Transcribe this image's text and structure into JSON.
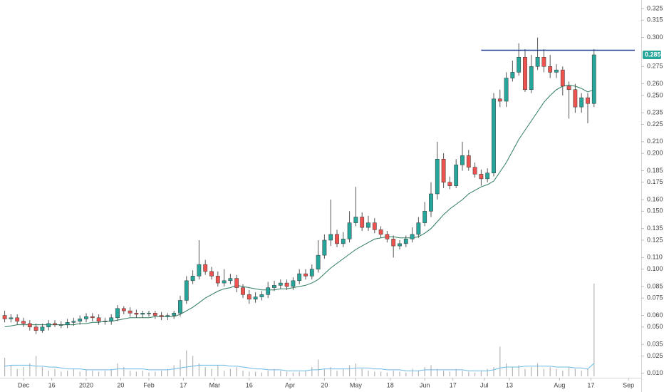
{
  "chart_data": {
    "type": "candlestick",
    "x": [
      -6,
      -4,
      -2,
      0,
      2,
      4,
      6,
      8,
      10,
      12,
      14,
      16,
      18,
      20,
      22,
      24,
      26,
      28,
      30,
      32,
      34,
      36,
      38,
      40,
      42,
      44,
      46,
      48,
      50,
      52,
      54,
      56,
      58,
      60,
      62,
      64,
      66,
      68,
      70,
      72,
      74,
      76,
      78,
      80,
      82,
      84,
      86,
      88,
      90,
      92,
      94,
      96,
      98,
      100,
      102,
      104,
      106,
      108,
      110,
      112,
      114,
      116,
      118,
      120,
      122,
      124,
      126,
      128,
      130,
      132,
      134,
      136,
      138,
      140,
      142,
      144,
      146,
      148,
      150,
      152,
      154,
      156,
      158,
      160,
      162,
      164,
      166,
      168,
      170,
      172,
      174,
      176,
      178,
      180,
      182
    ],
    "open": [
      0.06,
      0.057,
      0.058,
      0.055,
      0.053,
      0.05,
      0.047,
      0.05,
      0.053,
      0.052,
      0.052,
      0.054,
      0.055,
      0.057,
      0.059,
      0.058,
      0.055,
      0.055,
      0.058,
      0.066,
      0.064,
      0.062,
      0.061,
      0.062,
      0.062,
      0.06,
      0.059,
      0.06,
      0.062,
      0.073,
      0.09,
      0.094,
      0.104,
      0.098,
      0.094,
      0.088,
      0.09,
      0.092,
      0.084,
      0.078,
      0.074,
      0.076,
      0.078,
      0.084,
      0.086,
      0.088,
      0.085,
      0.09,
      0.096,
      0.094,
      0.1,
      0.112,
      0.125,
      0.13,
      0.122,
      0.126,
      0.14,
      0.145,
      0.136,
      0.14,
      0.134,
      0.13,
      0.126,
      0.12,
      0.122,
      0.126,
      0.13,
      0.14,
      0.15,
      0.165,
      0.195,
      0.175,
      0.172,
      0.19,
      0.198,
      0.188,
      0.182,
      0.178,
      0.183,
      0.247,
      0.245,
      0.265,
      0.27,
      0.283,
      0.255,
      0.275,
      0.283,
      0.275,
      0.27,
      0.272,
      0.258,
      0.255,
      0.24,
      0.248,
      0.243
    ],
    "high": [
      0.064,
      0.061,
      0.061,
      0.058,
      0.056,
      0.053,
      0.053,
      0.056,
      0.056,
      0.055,
      0.057,
      0.058,
      0.06,
      0.062,
      0.062,
      0.061,
      0.058,
      0.061,
      0.069,
      0.068,
      0.067,
      0.065,
      0.064,
      0.064,
      0.064,
      0.063,
      0.062,
      0.064,
      0.077,
      0.094,
      0.099,
      0.125,
      0.108,
      0.102,
      0.098,
      0.1,
      0.096,
      0.095,
      0.087,
      0.082,
      0.08,
      0.081,
      0.089,
      0.09,
      0.091,
      0.091,
      0.093,
      0.1,
      0.1,
      0.104,
      0.125,
      0.13,
      0.16,
      0.134,
      0.132,
      0.15,
      0.171,
      0.149,
      0.146,
      0.144,
      0.137,
      0.133,
      0.129,
      0.125,
      0.129,
      0.136,
      0.145,
      0.158,
      0.175,
      0.21,
      0.2,
      0.18,
      0.195,
      0.21,
      0.203,
      0.192,
      0.186,
      0.187,
      0.252,
      0.255,
      0.27,
      0.28,
      0.295,
      0.29,
      0.285,
      0.3,
      0.29,
      0.285,
      0.277,
      0.275,
      0.262,
      0.26,
      0.252,
      0.252,
      0.29
    ],
    "low": [
      0.054,
      0.054,
      0.052,
      0.05,
      0.047,
      0.044,
      0.045,
      0.047,
      0.05,
      0.049,
      0.049,
      0.051,
      0.052,
      0.054,
      0.055,
      0.052,
      0.052,
      0.052,
      0.055,
      0.061,
      0.059,
      0.058,
      0.058,
      0.059,
      0.057,
      0.056,
      0.056,
      0.057,
      0.059,
      0.07,
      0.087,
      0.091,
      0.095,
      0.091,
      0.085,
      0.085,
      0.087,
      0.08,
      0.075,
      0.07,
      0.071,
      0.073,
      0.075,
      0.081,
      0.083,
      0.082,
      0.082,
      0.087,
      0.091,
      0.091,
      0.097,
      0.109,
      0.12,
      0.119,
      0.119,
      0.123,
      0.137,
      0.133,
      0.133,
      0.131,
      0.127,
      0.123,
      0.11,
      0.117,
      0.119,
      0.123,
      0.127,
      0.137,
      0.145,
      0.16,
      0.17,
      0.169,
      0.17,
      0.185,
      0.185,
      0.179,
      0.172,
      0.175,
      0.18,
      0.24,
      0.24,
      0.262,
      0.267,
      0.253,
      0.252,
      0.272,
      0.27,
      0.265,
      0.265,
      0.25,
      0.23,
      0.235,
      0.235,
      0.226,
      0.24
    ],
    "close": [
      0.057,
      0.058,
      0.055,
      0.053,
      0.05,
      0.047,
      0.05,
      0.053,
      0.052,
      0.052,
      0.054,
      0.055,
      0.057,
      0.059,
      0.058,
      0.055,
      0.055,
      0.058,
      0.066,
      0.064,
      0.062,
      0.061,
      0.062,
      0.062,
      0.06,
      0.059,
      0.06,
      0.062,
      0.073,
      0.09,
      0.094,
      0.104,
      0.098,
      0.094,
      0.088,
      0.09,
      0.092,
      0.084,
      0.078,
      0.074,
      0.076,
      0.078,
      0.084,
      0.086,
      0.088,
      0.085,
      0.09,
      0.096,
      0.094,
      0.1,
      0.112,
      0.125,
      0.13,
      0.122,
      0.126,
      0.14,
      0.145,
      0.136,
      0.14,
      0.134,
      0.13,
      0.126,
      0.12,
      0.122,
      0.126,
      0.13,
      0.14,
      0.15,
      0.165,
      0.195,
      0.175,
      0.172,
      0.19,
      0.198,
      0.188,
      0.182,
      0.178,
      0.183,
      0.247,
      0.245,
      0.265,
      0.27,
      0.283,
      0.255,
      0.275,
      0.283,
      0.275,
      0.27,
      0.272,
      0.258,
      0.255,
      0.24,
      0.248,
      0.243,
      0.285
    ],
    "ma": [
      0.05,
      0.051,
      0.052,
      0.052,
      0.052,
      0.052,
      0.052,
      0.052,
      0.052,
      0.052,
      0.052,
      0.052,
      0.053,
      0.053,
      0.054,
      0.054,
      0.055,
      0.055,
      0.056,
      0.057,
      0.058,
      0.058,
      0.058,
      0.058,
      0.059,
      0.059,
      0.059,
      0.059,
      0.061,
      0.064,
      0.067,
      0.071,
      0.075,
      0.078,
      0.081,
      0.083,
      0.084,
      0.086,
      0.085,
      0.084,
      0.083,
      0.082,
      0.082,
      0.082,
      0.083,
      0.083,
      0.084,
      0.085,
      0.086,
      0.088,
      0.091,
      0.096,
      0.101,
      0.105,
      0.109,
      0.113,
      0.117,
      0.12,
      0.123,
      0.126,
      0.127,
      0.128,
      0.128,
      0.127,
      0.127,
      0.127,
      0.128,
      0.131,
      0.135,
      0.141,
      0.147,
      0.152,
      0.156,
      0.16,
      0.165,
      0.168,
      0.171,
      0.173,
      0.176,
      0.184,
      0.192,
      0.202,
      0.212,
      0.22,
      0.228,
      0.236,
      0.244,
      0.25,
      0.255,
      0.258,
      0.259,
      0.258,
      0.256,
      0.253,
      0.255
    ],
    "volume": [
      20,
      12,
      8,
      10,
      14,
      22,
      10,
      6,
      8,
      5,
      6,
      8,
      5,
      7,
      6,
      5,
      6,
      8,
      14,
      10,
      6,
      5,
      6,
      4,
      5,
      6,
      8,
      12,
      18,
      28,
      22,
      14,
      10,
      8,
      12,
      6,
      8,
      10,
      6,
      5,
      5,
      4,
      6,
      8,
      6,
      5,
      4,
      5,
      6,
      10,
      18,
      8,
      10,
      6,
      8,
      12,
      14,
      8,
      6,
      5,
      5,
      4,
      6,
      5,
      4,
      8,
      6,
      10,
      12,
      8,
      6,
      5,
      8,
      6,
      5,
      4,
      6,
      8,
      10,
      32,
      14,
      10,
      12,
      8,
      10,
      14,
      8,
      10,
      8,
      6,
      10,
      8,
      6,
      8,
      100
    ],
    "volume_ma": [
      11,
      12,
      12,
      12,
      12,
      11,
      11,
      10,
      10,
      9,
      8,
      8,
      8,
      7,
      7,
      7,
      7,
      7,
      8,
      8,
      8,
      8,
      8,
      7,
      7,
      7,
      7,
      8,
      9,
      10,
      11,
      12,
      12,
      12,
      12,
      12,
      11,
      11,
      10,
      9,
      8,
      8,
      7,
      7,
      7,
      6,
      6,
      6,
      6,
      7,
      7,
      8,
      8,
      8,
      8,
      8,
      9,
      9,
      9,
      8,
      8,
      7,
      7,
      7,
      6,
      6,
      6,
      7,
      7,
      7,
      7,
      7,
      7,
      7,
      6,
      6,
      6,
      6,
      7,
      9,
      10,
      10,
      10,
      11,
      11,
      11,
      11,
      11,
      10,
      10,
      10,
      9,
      9,
      8,
      14
    ],
    "up_color": "#26a69a",
    "down_color": "#ef5350",
    "ma_color": "#2e7d5b",
    "volume_color": "#b5b5b5",
    "volume_ma_color": "#6bbbe6",
    "xlim": [
      -7.5,
      197.05
    ],
    "ylim": [
      0.0062,
      0.3324
    ],
    "vlim": [
      0,
      100
    ],
    "xticks": [
      {
        "value": 0,
        "label": "Dec"
      },
      {
        "value": 9,
        "label": "16"
      },
      {
        "value": 20,
        "label": "2020"
      },
      {
        "value": 31,
        "label": "20"
      },
      {
        "value": 40,
        "label": "Feb"
      },
      {
        "value": 51,
        "label": "17"
      },
      {
        "value": 61,
        "label": "Mar"
      },
      {
        "value": 72,
        "label": "16"
      },
      {
        "value": 85,
        "label": "Apr"
      },
      {
        "value": 96,
        "label": "20"
      },
      {
        "value": 106,
        "label": "May"
      },
      {
        "value": 117,
        "label": "18"
      },
      {
        "value": 128,
        "label": "Jun"
      },
      {
        "value": 137,
        "label": "17"
      },
      {
        "value": 147,
        "label": "Jul"
      },
      {
        "value": 155,
        "label": "13"
      },
      {
        "value": 171,
        "label": "Aug"
      },
      {
        "value": 181,
        "label": "17"
      },
      {
        "value": 193,
        "label": "Sep"
      }
    ],
    "yticks": [
      {
        "value": 0.01,
        "label": "0.010"
      },
      {
        "value": 0.025,
        "label": "0.025"
      },
      {
        "value": 0.035,
        "label": "0.035"
      },
      {
        "value": 0.05,
        "label": "0.050"
      },
      {
        "value": 0.06,
        "label": "0.060"
      },
      {
        "value": 0.075,
        "label": "0.075"
      },
      {
        "value": 0.085,
        "label": "0.085"
      },
      {
        "value": 0.1,
        "label": "0.100"
      },
      {
        "value": 0.11,
        "label": "0.110"
      },
      {
        "value": 0.125,
        "label": "0.125"
      },
      {
        "value": 0.135,
        "label": "0.135"
      },
      {
        "value": 0.15,
        "label": "0.150"
      },
      {
        "value": 0.16,
        "label": "0.160"
      },
      {
        "value": 0.175,
        "label": "0.175"
      },
      {
        "value": 0.185,
        "label": "0.185"
      },
      {
        "value": 0.2,
        "label": "0.200"
      },
      {
        "value": 0.21,
        "label": "0.210"
      },
      {
        "value": 0.225,
        "label": "0.225"
      },
      {
        "value": 0.235,
        "label": "0.235"
      },
      {
        "value": 0.25,
        "label": "0.250"
      },
      {
        "value": 0.26,
        "label": "0.260"
      },
      {
        "value": 0.275,
        "label": "0.275"
      },
      {
        "value": 0.3,
        "label": "0.300"
      },
      {
        "value": 0.315,
        "label": "0.315"
      },
      {
        "value": 0.325,
        "label": "0.325"
      }
    ],
    "last_price": {
      "value": 0.285,
      "label": "0.285",
      "color": "#26a69a"
    },
    "hline": {
      "value": 0.289,
      "x": [
        146,
        195
      ],
      "color": "#1f3f8f"
    }
  }
}
